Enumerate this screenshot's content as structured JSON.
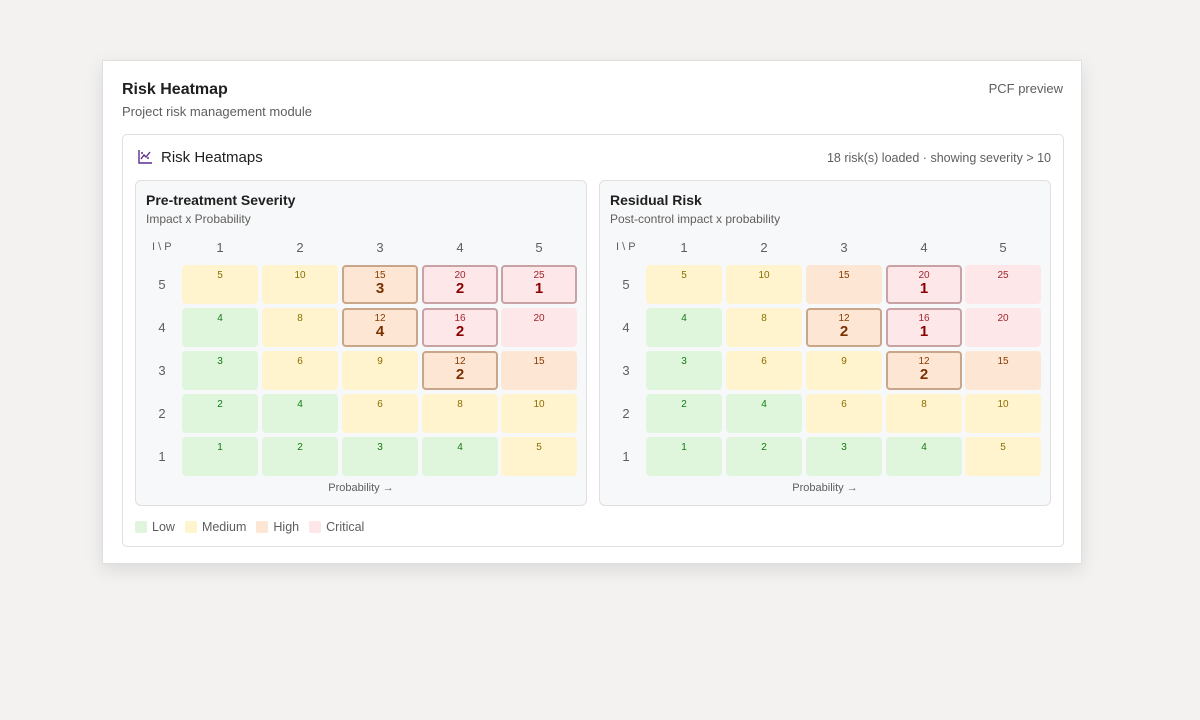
{
  "app": {
    "title": "Risk Heatmap",
    "subtitle": "Project risk management module",
    "preview_label": "PCF preview"
  },
  "panel": {
    "icon": "chart-icon",
    "title": "Risk Heatmaps",
    "status": "18 risk(s) loaded · showing severity > 10"
  },
  "colors": {
    "low": "#dff6dd",
    "medium": "#fff4ce",
    "high": "#fde7d4",
    "critical": "#fde7e9",
    "low_text": "#107c10",
    "medium_text": "#8a6d00",
    "high_text": "#8a3b00",
    "critical_text": "#a4262c",
    "accent": "#5c2d91"
  },
  "heatmaps": [
    {
      "title": "Pre-treatment Severity",
      "subtitle": "Impact x Probability",
      "corner_label": "I \\ P",
      "axis_label": "Probability →",
      "col_labels": [
        "1",
        "2",
        "3",
        "4",
        "5"
      ],
      "row_labels": [
        "5",
        "4",
        "3",
        "2",
        "1"
      ],
      "rows": [
        [
          {
            "score": "5",
            "level": "medium",
            "count": ""
          },
          {
            "score": "10",
            "level": "medium",
            "count": ""
          },
          {
            "score": "15",
            "level": "high",
            "count": "3"
          },
          {
            "score": "20",
            "level": "critical",
            "count": "2"
          },
          {
            "score": "25",
            "level": "critical",
            "count": "1"
          }
        ],
        [
          {
            "score": "4",
            "level": "low",
            "count": ""
          },
          {
            "score": "8",
            "level": "medium",
            "count": ""
          },
          {
            "score": "12",
            "level": "high",
            "count": "4"
          },
          {
            "score": "16",
            "level": "critical",
            "count": "2"
          },
          {
            "score": "20",
            "level": "critical",
            "count": ""
          }
        ],
        [
          {
            "score": "3",
            "level": "low",
            "count": ""
          },
          {
            "score": "6",
            "level": "medium",
            "count": ""
          },
          {
            "score": "9",
            "level": "medium",
            "count": ""
          },
          {
            "score": "12",
            "level": "high",
            "count": "2"
          },
          {
            "score": "15",
            "level": "high",
            "count": ""
          }
        ],
        [
          {
            "score": "2",
            "level": "low",
            "count": ""
          },
          {
            "score": "4",
            "level": "low",
            "count": ""
          },
          {
            "score": "6",
            "level": "medium",
            "count": ""
          },
          {
            "score": "8",
            "level": "medium",
            "count": ""
          },
          {
            "score": "10",
            "level": "medium",
            "count": ""
          }
        ],
        [
          {
            "score": "1",
            "level": "low",
            "count": ""
          },
          {
            "score": "2",
            "level": "low",
            "count": ""
          },
          {
            "score": "3",
            "level": "low",
            "count": ""
          },
          {
            "score": "4",
            "level": "low",
            "count": ""
          },
          {
            "score": "5",
            "level": "medium",
            "count": ""
          }
        ]
      ]
    },
    {
      "title": "Residual Risk",
      "subtitle": "Post-control impact x probability",
      "corner_label": "I \\ P",
      "axis_label": "Probability →",
      "col_labels": [
        "1",
        "2",
        "3",
        "4",
        "5"
      ],
      "row_labels": [
        "5",
        "4",
        "3",
        "2",
        "1"
      ],
      "rows": [
        [
          {
            "score": "5",
            "level": "medium",
            "count": ""
          },
          {
            "score": "10",
            "level": "medium",
            "count": ""
          },
          {
            "score": "15",
            "level": "high",
            "count": ""
          },
          {
            "score": "20",
            "level": "critical",
            "count": "1"
          },
          {
            "score": "25",
            "level": "critical",
            "count": ""
          }
        ],
        [
          {
            "score": "4",
            "level": "low",
            "count": ""
          },
          {
            "score": "8",
            "level": "medium",
            "count": ""
          },
          {
            "score": "12",
            "level": "high",
            "count": "2"
          },
          {
            "score": "16",
            "level": "critical",
            "count": "1"
          },
          {
            "score": "20",
            "level": "critical",
            "count": ""
          }
        ],
        [
          {
            "score": "3",
            "level": "low",
            "count": ""
          },
          {
            "score": "6",
            "level": "medium",
            "count": ""
          },
          {
            "score": "9",
            "level": "medium",
            "count": ""
          },
          {
            "score": "12",
            "level": "high",
            "count": "2"
          },
          {
            "score": "15",
            "level": "high",
            "count": ""
          }
        ],
        [
          {
            "score": "2",
            "level": "low",
            "count": ""
          },
          {
            "score": "4",
            "level": "low",
            "count": ""
          },
          {
            "score": "6",
            "level": "medium",
            "count": ""
          },
          {
            "score": "8",
            "level": "medium",
            "count": ""
          },
          {
            "score": "10",
            "level": "medium",
            "count": ""
          }
        ],
        [
          {
            "score": "1",
            "level": "low",
            "count": ""
          },
          {
            "score": "2",
            "level": "low",
            "count": ""
          },
          {
            "score": "3",
            "level": "low",
            "count": ""
          },
          {
            "score": "4",
            "level": "low",
            "count": ""
          },
          {
            "score": "5",
            "level": "medium",
            "count": ""
          }
        ]
      ]
    }
  ],
  "legend": [
    {
      "label": "Low",
      "level": "low"
    },
    {
      "label": "Medium",
      "level": "medium"
    },
    {
      "label": "High",
      "level": "high"
    },
    {
      "label": "Critical",
      "level": "critical"
    }
  ]
}
